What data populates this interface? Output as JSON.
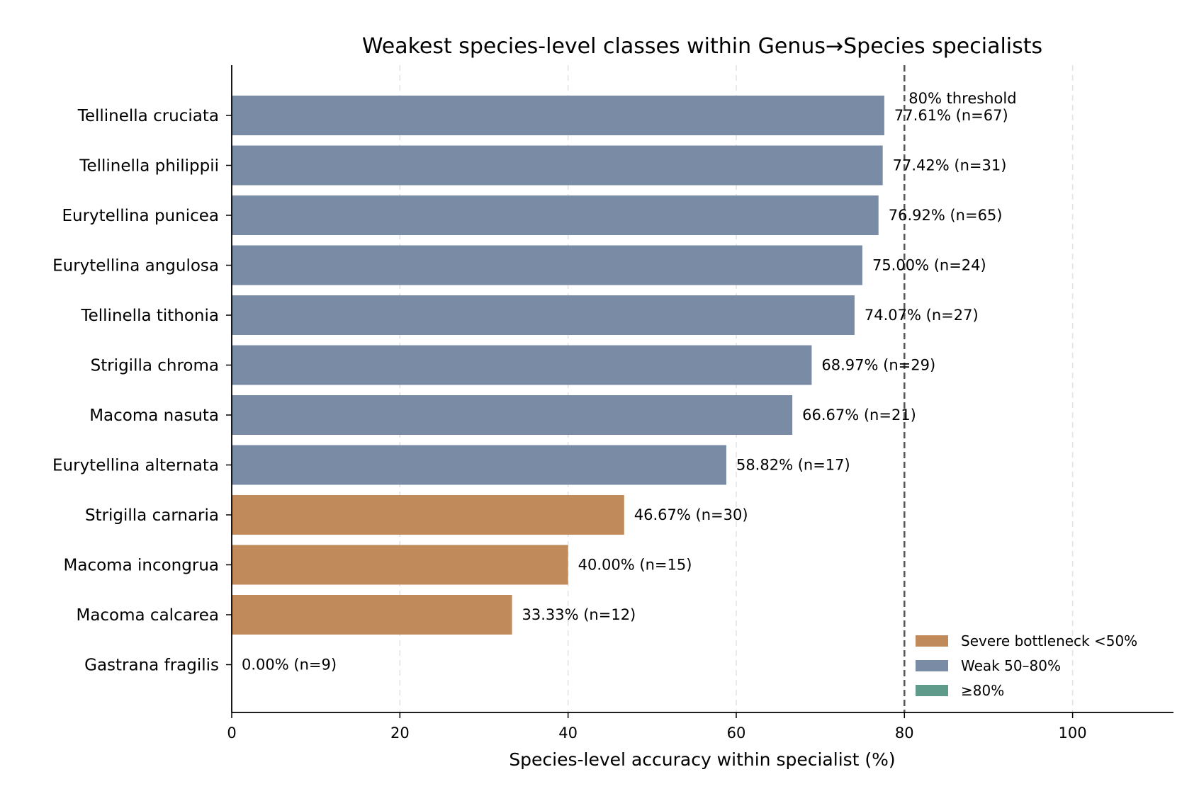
{
  "chart_data": {
    "type": "bar",
    "orientation": "horizontal",
    "title": "Weakest species-level classes within Genus→Species specialists",
    "xlabel": "Species-level accuracy within specialist (%)",
    "ylabel": "",
    "xlim": [
      0,
      112
    ],
    "xticks": [
      0,
      20,
      40,
      60,
      80,
      100
    ],
    "grid": "vertical dashed",
    "categories": [
      "Tellinella cruciata",
      "Tellinella philippii",
      "Eurytellina punicea",
      "Eurytellina angulosa",
      "Tellinella tithonia",
      "Strigilla chroma",
      "Macoma nasuta",
      "Eurytellina alternata",
      "Strigilla carnaria",
      "Macoma incongrua",
      "Macoma calcarea",
      "Gastrana fragilis"
    ],
    "values": [
      77.61,
      77.42,
      76.92,
      75.0,
      74.07,
      68.97,
      66.67,
      58.82,
      46.67,
      40.0,
      33.33,
      0.0
    ],
    "n": [
      67,
      31,
      65,
      24,
      27,
      29,
      21,
      17,
      30,
      15,
      12,
      9
    ],
    "data_labels": [
      "77.61% (n=67)",
      "77.42% (n=31)",
      "76.92% (n=65)",
      "75.00% (n=24)",
      "74.07% (n=27)",
      "68.97% (n=29)",
      "66.67% (n=21)",
      "58.82% (n=17)",
      "46.67% (n=30)",
      "40.00% (n=15)",
      "33.33% (n=12)",
      "0.00% (n=9)"
    ],
    "threshold": {
      "value": 80,
      "label": "80% threshold",
      "color": "#555555"
    },
    "legend": {
      "placement": "bottom-right",
      "entries": [
        {
          "label": "Severe bottleneck <50%",
          "color": "#c18a5b"
        },
        {
          "label": "Weak 50–80%",
          "color": "#7a8ca5"
        },
        {
          "label": "≥80%",
          "color": "#5e9b8a"
        }
      ]
    },
    "colors": {
      "severe": "#c18a5b",
      "weak": "#7a8ca5",
      "good": "#5e9b8a"
    }
  }
}
